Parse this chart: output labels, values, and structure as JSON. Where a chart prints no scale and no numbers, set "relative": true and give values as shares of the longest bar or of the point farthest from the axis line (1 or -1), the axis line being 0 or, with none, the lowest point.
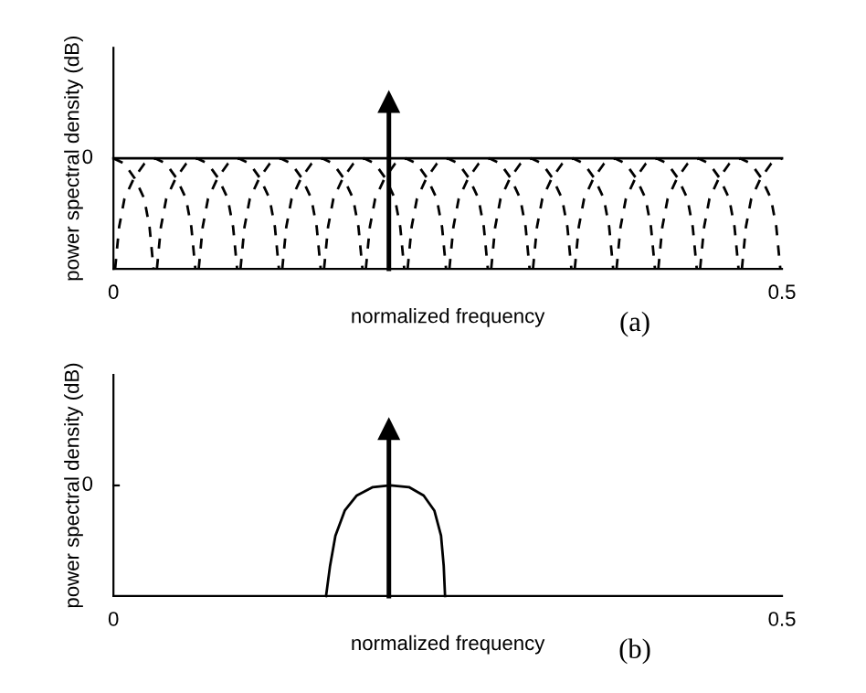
{
  "chart_data": [
    {
      "type": "line",
      "relative": true,
      "xlabel": "normalized frequency",
      "ylabel": "power spectral density (dB)",
      "xlim": [
        0,
        0.5
      ],
      "xticks": [
        0,
        0.5
      ],
      "grid": false,
      "legend": false,
      "annotations": [
        "0",
        "(a)"
      ],
      "series": [
        {
          "type": "line",
          "color": "#000000",
          "line_style": "solid",
          "x": [
            0,
            0.5
          ],
          "values": [
            0.66,
            0.66
          ]
        },
        {
          "type": "line",
          "color": "#000000",
          "line_style": "dashed",
          "x": [
            0,
            0.008,
            0.016,
            0.023,
            0.027,
            0.03
          ],
          "values": [
            0.66,
            0.63,
            0.54,
            0.42,
            0.25,
            0
          ]
        },
        {
          "type": "line",
          "color": "#000000",
          "line_style": "dashed",
          "x": [
            0.00125,
            0.00425,
            0.00825,
            0.01525,
            0.02325,
            0.03125,
            0.03925,
            0.04725,
            0.05425,
            0.05825,
            0.06125
          ],
          "values": [
            0,
            0.25,
            0.42,
            0.54,
            0.63,
            0.66,
            0.63,
            0.54,
            0.42,
            0.25,
            0
          ]
        },
        {
          "type": "line",
          "color": "#000000",
          "line_style": "dashed",
          "x": [
            0.0325,
            0.0355,
            0.0395,
            0.0465,
            0.0545,
            0.0625,
            0.0705,
            0.0785,
            0.0855,
            0.0895,
            0.0925
          ],
          "values": [
            0,
            0.25,
            0.42,
            0.54,
            0.63,
            0.66,
            0.63,
            0.54,
            0.42,
            0.25,
            0
          ]
        },
        {
          "type": "line",
          "color": "#000000",
          "line_style": "dashed",
          "x": [
            0.06375,
            0.06675,
            0.07075,
            0.07775,
            0.08575,
            0.09375,
            0.10175,
            0.10975,
            0.11675,
            0.12075,
            0.12375
          ],
          "values": [
            0,
            0.25,
            0.42,
            0.54,
            0.63,
            0.66,
            0.63,
            0.54,
            0.42,
            0.25,
            0
          ]
        },
        {
          "type": "line",
          "color": "#000000",
          "line_style": "dashed",
          "x": [
            0.095,
            0.098,
            0.102,
            0.109,
            0.117,
            0.125,
            0.133,
            0.141,
            0.148,
            0.152,
            0.155
          ],
          "values": [
            0,
            0.25,
            0.42,
            0.54,
            0.63,
            0.66,
            0.63,
            0.54,
            0.42,
            0.25,
            0
          ]
        },
        {
          "type": "line",
          "color": "#000000",
          "line_style": "dashed",
          "x": [
            0.12625,
            0.12925,
            0.13325,
            0.14025,
            0.14825,
            0.15625,
            0.16425,
            0.17225,
            0.17925,
            0.18325,
            0.18625
          ],
          "values": [
            0,
            0.25,
            0.42,
            0.54,
            0.63,
            0.66,
            0.63,
            0.54,
            0.42,
            0.25,
            0
          ]
        },
        {
          "type": "line",
          "color": "#000000",
          "line_style": "dashed",
          "x": [
            0.1575,
            0.1605,
            0.1645,
            0.1715,
            0.1795,
            0.1875,
            0.1955,
            0.2035,
            0.2105,
            0.2145,
            0.2175
          ],
          "values": [
            0,
            0.25,
            0.42,
            0.54,
            0.63,
            0.66,
            0.63,
            0.54,
            0.42,
            0.25,
            0
          ]
        },
        {
          "type": "line",
          "color": "#000000",
          "line_style": "dashed",
          "x": [
            0.18875,
            0.19175,
            0.19575,
            0.20275,
            0.21075,
            0.21875,
            0.22675,
            0.23475,
            0.24175,
            0.24575,
            0.24875
          ],
          "values": [
            0,
            0.25,
            0.42,
            0.54,
            0.63,
            0.66,
            0.63,
            0.54,
            0.42,
            0.25,
            0
          ]
        },
        {
          "type": "line",
          "color": "#000000",
          "line_style": "dashed",
          "x": [
            0.22,
            0.223,
            0.227,
            0.234,
            0.242,
            0.25,
            0.258,
            0.266,
            0.273,
            0.277,
            0.28
          ],
          "values": [
            0,
            0.25,
            0.42,
            0.54,
            0.63,
            0.66,
            0.63,
            0.54,
            0.42,
            0.25,
            0
          ]
        },
        {
          "type": "line",
          "color": "#000000",
          "line_style": "dashed",
          "x": [
            0.25125,
            0.25425,
            0.25825,
            0.26525,
            0.27325,
            0.28125,
            0.28925,
            0.29725,
            0.30425,
            0.30825,
            0.31125
          ],
          "values": [
            0,
            0.25,
            0.42,
            0.54,
            0.63,
            0.66,
            0.63,
            0.54,
            0.42,
            0.25,
            0
          ]
        },
        {
          "type": "line",
          "color": "#000000",
          "line_style": "dashed",
          "x": [
            0.2825,
            0.2855,
            0.2895,
            0.2965,
            0.3045,
            0.3125,
            0.3205,
            0.3285,
            0.3355,
            0.3395,
            0.3425
          ],
          "values": [
            0,
            0.25,
            0.42,
            0.54,
            0.63,
            0.66,
            0.63,
            0.54,
            0.42,
            0.25,
            0
          ]
        },
        {
          "type": "line",
          "color": "#000000",
          "line_style": "dashed",
          "x": [
            0.31375,
            0.31675,
            0.32075,
            0.32775,
            0.33575,
            0.34375,
            0.35175,
            0.35975,
            0.36675,
            0.37075,
            0.37375
          ],
          "values": [
            0,
            0.25,
            0.42,
            0.54,
            0.63,
            0.66,
            0.63,
            0.54,
            0.42,
            0.25,
            0
          ]
        },
        {
          "type": "line",
          "color": "#000000",
          "line_style": "dashed",
          "x": [
            0.345,
            0.348,
            0.352,
            0.359,
            0.367,
            0.375,
            0.383,
            0.391,
            0.398,
            0.402,
            0.405
          ],
          "values": [
            0,
            0.25,
            0.42,
            0.54,
            0.63,
            0.66,
            0.63,
            0.54,
            0.42,
            0.25,
            0
          ]
        },
        {
          "type": "line",
          "color": "#000000",
          "line_style": "dashed",
          "x": [
            0.37625,
            0.37925,
            0.38325,
            0.39025,
            0.39825,
            0.40625,
            0.41425,
            0.42225,
            0.42925,
            0.43325,
            0.43625
          ],
          "values": [
            0,
            0.25,
            0.42,
            0.54,
            0.63,
            0.66,
            0.63,
            0.54,
            0.42,
            0.25,
            0
          ]
        },
        {
          "type": "line",
          "color": "#000000",
          "line_style": "dashed",
          "x": [
            0.4075,
            0.4105,
            0.4145,
            0.4215,
            0.4295,
            0.4375,
            0.4455,
            0.4535,
            0.4605,
            0.4645,
            0.4675
          ],
          "values": [
            0,
            0.25,
            0.42,
            0.54,
            0.63,
            0.66,
            0.63,
            0.54,
            0.42,
            0.25,
            0
          ]
        },
        {
          "type": "line",
          "color": "#000000",
          "line_style": "dashed",
          "x": [
            0.43875,
            0.44175,
            0.44575,
            0.45275,
            0.46075,
            0.46875,
            0.47675,
            0.48475,
            0.49175,
            0.49575,
            0.49875
          ],
          "values": [
            0,
            0.25,
            0.42,
            0.54,
            0.63,
            0.66,
            0.63,
            0.54,
            0.42,
            0.25,
            0
          ]
        },
        {
          "type": "line",
          "color": "#000000",
          "line_style": "dashed",
          "x": [
            0.47,
            0.473,
            0.477,
            0.484,
            0.492,
            0.5
          ],
          "values": [
            0,
            0.25,
            0.42,
            0.54,
            0.63,
            0.66
          ]
        },
        {
          "type": "lollipop",
          "color": "#000000",
          "marker": "triangle",
          "x": [
            0.206
          ],
          "values": [
            1
          ]
        }
      ]
    },
    {
      "type": "line",
      "relative": true,
      "xlabel": "normalized frequency",
      "ylabel": "power spectral density (dB)",
      "xlim": [
        0,
        0.5
      ],
      "xticks": [
        0,
        0.5
      ],
      "grid": false,
      "legend": false,
      "annotations": [
        "0",
        "(b)"
      ],
      "series": [
        {
          "type": "line",
          "color": "#000000",
          "line_style": "solid",
          "x": [
            0.159,
            0.162,
            0.166,
            0.173,
            0.182,
            0.194,
            0.207,
            0.221,
            0.232,
            0.24,
            0.245,
            0.247,
            0.248
          ],
          "values": [
            0,
            0.18,
            0.36,
            0.51,
            0.6,
            0.65,
            0.66,
            0.65,
            0.6,
            0.51,
            0.36,
            0.18,
            0
          ]
        },
        {
          "type": "lollipop",
          "color": "#000000",
          "marker": "triangle",
          "x": [
            0.206
          ],
          "values": [
            1
          ]
        }
      ]
    }
  ]
}
